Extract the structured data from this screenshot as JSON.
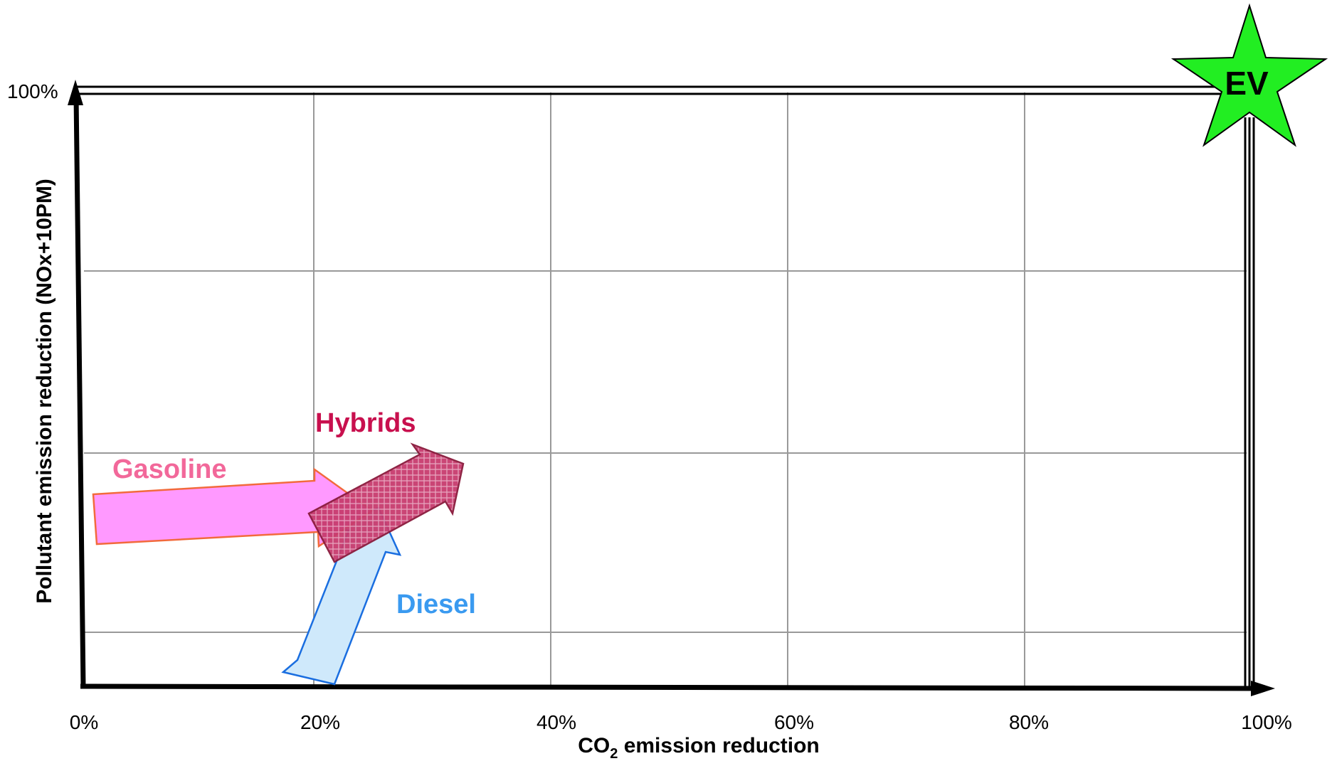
{
  "diagram": {
    "x_axis": {
      "title_prefix": "CO",
      "title_subscript": "2",
      "title_suffix": " emission reduction",
      "tick_labels": [
        "0%",
        "20%",
        "40%",
        "60%",
        "80%",
        "100%"
      ]
    },
    "y_axis": {
      "title": "Pollutant emission reduction  (NOx+10PM)",
      "top_label": "100%"
    },
    "series": [
      {
        "label": "Gasoline",
        "color": "#f2689a",
        "fill": "#ff99ff",
        "stroke": "#f26a3c"
      },
      {
        "label": "Hybrids",
        "color": "#c8104e",
        "fill": "#c83c6e",
        "stroke": "#8a1a3c"
      },
      {
        "label": "Diesel",
        "color": "#3a9af0",
        "fill": "#cfe9fb",
        "stroke": "#1a6ee0"
      }
    ],
    "target": {
      "label": "EV",
      "color": "#22ee22"
    }
  }
}
